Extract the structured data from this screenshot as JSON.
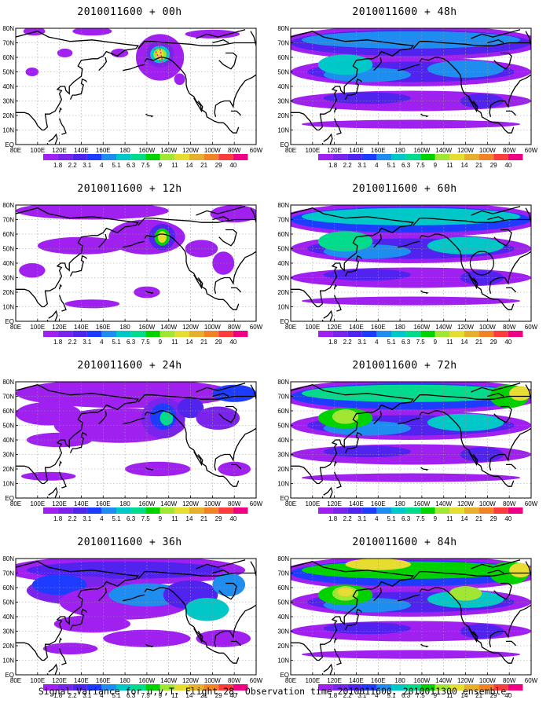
{
  "figure": {
    "caption": "Signal Variance for u,v,T. Flight 28. Observation time 2010011600. 2010011300 ensemble."
  },
  "colorbar": {
    "colors": [
      "#a020f0",
      "#7a23ea",
      "#5024ee",
      "#1e3cff",
      "#1f8cf0",
      "#00c8c8",
      "#00dc8c",
      "#00d200",
      "#a0e632",
      "#e6dc32",
      "#e6af2d",
      "#f08228",
      "#fa3c3c",
      "#f00082"
    ],
    "labels": [
      "1.8",
      "2.2",
      "3.1",
      "4",
      "5.1",
      "6.3",
      "7.5",
      "9",
      "11",
      "14",
      "21",
      "29",
      "40"
    ]
  },
  "axes": {
    "lon_labels": [
      "80E",
      "100E",
      "120E",
      "140E",
      "160E",
      "180",
      "160W",
      "140W",
      "120W",
      "100W",
      "80W",
      "60W"
    ],
    "lat_labels": [
      "80N",
      "70N",
      "60N",
      "50N",
      "40N",
      "30N",
      "20N",
      "10N",
      "EQ"
    ]
  },
  "panels": [
    {
      "title": "2010011600 + 00h",
      "level": 0
    },
    {
      "title": "2010011600 + 48h",
      "level": 4
    },
    {
      "title": "2010011600 + 12h",
      "level": 1
    },
    {
      "title": "2010011600 + 60h",
      "level": 5
    },
    {
      "title": "2010011600 + 24h",
      "level": 2
    },
    {
      "title": "2010011600 + 72h",
      "level": 6
    },
    {
      "title": "2010011600 + 36h",
      "level": 3
    },
    {
      "title": "2010011600 + 84h",
      "level": 7
    }
  ]
}
